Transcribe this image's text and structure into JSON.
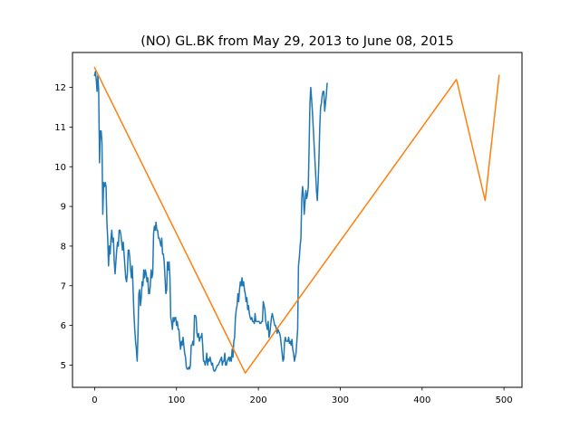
{
  "chart_data": {
    "type": "line",
    "title": "(NO) GL.BK from May 29, 2013 to June 08, 2015",
    "xlabel": "",
    "ylabel": "",
    "xlim": [
      -27,
      522
    ],
    "ylim": [
      4.44,
      12.88
    ],
    "x_ticks": [
      0,
      100,
      200,
      300,
      400,
      500
    ],
    "y_ticks": [
      5,
      6,
      7,
      8,
      9,
      10,
      11,
      12
    ],
    "grid": false,
    "legend": "none",
    "series": [
      {
        "color": "#1f77b4",
        "points": [
          [
            0,
            12.3
          ],
          [
            1,
            12.4
          ],
          [
            2,
            12.2
          ],
          [
            3,
            11.9
          ],
          [
            4,
            12.3
          ],
          [
            5,
            11.9
          ],
          [
            6,
            10.1
          ],
          [
            7,
            10.9
          ],
          [
            8,
            10.9
          ],
          [
            9,
            10.6
          ],
          [
            10,
            8.8
          ],
          [
            11,
            9.6
          ],
          [
            12,
            9.5
          ],
          [
            13,
            9.6
          ],
          [
            14,
            9.5
          ],
          [
            15,
            8.6
          ],
          [
            16,
            8.2
          ],
          [
            17,
            7.5
          ],
          [
            18,
            8.0
          ],
          [
            19,
            7.8
          ],
          [
            20,
            8.2
          ],
          [
            21,
            8.4
          ],
          [
            22,
            8.1
          ],
          [
            23,
            8.2
          ],
          [
            24,
            7.6
          ],
          [
            25,
            7.3
          ],
          [
            26,
            7.6
          ],
          [
            27,
            7.9
          ],
          [
            28,
            8.1
          ],
          [
            29,
            8.0
          ],
          [
            30,
            8.4
          ],
          [
            31,
            8.4
          ],
          [
            32,
            8.3
          ],
          [
            33,
            8.1
          ],
          [
            34,
            7.9
          ],
          [
            35,
            8.1
          ],
          [
            36,
            7.8
          ],
          [
            37,
            7.5
          ],
          [
            38,
            7.2
          ],
          [
            39,
            7.1
          ],
          [
            40,
            7.3
          ],
          [
            41,
            7.9
          ],
          [
            42,
            7.9
          ],
          [
            43,
            7.7
          ],
          [
            44,
            7.4
          ],
          [
            45,
            7.2
          ],
          [
            46,
            7.5
          ],
          [
            47,
            6.9
          ],
          [
            48,
            6.3
          ],
          [
            49,
            5.9
          ],
          [
            50,
            5.6
          ],
          [
            51,
            5.4
          ],
          [
            52,
            5.1
          ],
          [
            53,
            5.8
          ],
          [
            54,
            6.8
          ],
          [
            55,
            6.9
          ],
          [
            56,
            6.5
          ],
          [
            57,
            6.7
          ],
          [
            58,
            7.1
          ],
          [
            59,
            7.0
          ],
          [
            60,
            7.4
          ],
          [
            61,
            7.2
          ],
          [
            62,
            7.4
          ],
          [
            63,
            7.3
          ],
          [
            64,
            7.1
          ],
          [
            65,
            7.2
          ],
          [
            66,
            6.8
          ],
          [
            67,
            6.8
          ],
          [
            68,
            7.0
          ],
          [
            69,
            7.4
          ],
          [
            70,
            7.2
          ],
          [
            71,
            7.3
          ],
          [
            72,
            8.3
          ],
          [
            73,
            8.5
          ],
          [
            74,
            8.4
          ],
          [
            75,
            8.6
          ],
          [
            76,
            8.4
          ],
          [
            77,
            8.4
          ],
          [
            78,
            8.2
          ],
          [
            79,
            8.2
          ],
          [
            80,
            8.1
          ],
          [
            81,
            8.0
          ],
          [
            82,
            8.2
          ],
          [
            83,
            7.8
          ],
          [
            84,
            7.8
          ],
          [
            85,
            7.6
          ],
          [
            86,
            7.2
          ],
          [
            87,
            6.8
          ],
          [
            88,
            6.9
          ],
          [
            89,
            7.6
          ],
          [
            90,
            7.4
          ],
          [
            91,
            7.6
          ],
          [
            92,
            7.2
          ],
          [
            93,
            6.2
          ],
          [
            94,
            6.1
          ],
          [
            95,
            5.9
          ],
          [
            96,
            6.2
          ],
          [
            97,
            6.1
          ],
          [
            98,
            6.2
          ],
          [
            99,
            6.2
          ],
          [
            100,
            6.0
          ],
          [
            101,
            6.1
          ],
          [
            102,
            5.9
          ],
          [
            103,
            5.9
          ],
          [
            104,
            5.6
          ],
          [
            105,
            5.4
          ],
          [
            106,
            5.6
          ],
          [
            107,
            5.5
          ],
          [
            108,
            5.7
          ],
          [
            109,
            5.5
          ],
          [
            110,
            5.3
          ],
          [
            111,
            5.2
          ],
          [
            112,
            4.95
          ],
          [
            113,
            4.9
          ],
          [
            114,
            4.9
          ],
          [
            115,
            4.95
          ],
          [
            116,
            4.9
          ],
          [
            117,
            5.0
          ],
          [
            118,
            5.5
          ],
          [
            119,
            5.5
          ],
          [
            120,
            5.6
          ],
          [
            121,
            5.5
          ],
          [
            122,
            6.25
          ],
          [
            123,
            6.25
          ],
          [
            124,
            6.2
          ],
          [
            125,
            5.8
          ],
          [
            126,
            5.7
          ],
          [
            127,
            5.8
          ],
          [
            128,
            5.6
          ],
          [
            129,
            5.7
          ],
          [
            130,
            5.7
          ],
          [
            131,
            5.8
          ],
          [
            132,
            5.5
          ],
          [
            133,
            5.1
          ],
          [
            134,
            5.1
          ],
          [
            135,
            5.0
          ],
          [
            136,
            5.1
          ],
          [
            137,
            5.3
          ],
          [
            138,
            5.0
          ],
          [
            139,
            5.15
          ],
          [
            140,
            5.1
          ],
          [
            141,
            5.2
          ],
          [
            142,
            5.1
          ],
          [
            143,
            5.0
          ],
          [
            144,
            5.05
          ],
          [
            145,
            4.9
          ],
          [
            146,
            4.85
          ],
          [
            147,
            4.85
          ],
          [
            148,
            4.9
          ],
          [
            149,
            4.95
          ],
          [
            150,
            5.0
          ],
          [
            151,
            5.0
          ],
          [
            152,
            5.05
          ],
          [
            153,
            5.1
          ],
          [
            154,
            5.15
          ],
          [
            155,
            5.2
          ],
          [
            156,
            5.0
          ],
          [
            157,
            5.1
          ],
          [
            158,
            5.1
          ],
          [
            159,
            5.3
          ],
          [
            160,
            5.0
          ],
          [
            161,
            5.0
          ],
          [
            162,
            5.1
          ],
          [
            163,
            5.15
          ],
          [
            164,
            5.2
          ],
          [
            165,
            5.1
          ],
          [
            166,
            5.2
          ],
          [
            167,
            5.1
          ],
          [
            168,
            5.4
          ],
          [
            169,
            5.2
          ],
          [
            170,
            5.6
          ],
          [
            171,
            5.7
          ],
          [
            172,
            6.2
          ],
          [
            173,
            6.4
          ],
          [
            174,
            6.5
          ],
          [
            175,
            6.8
          ],
          [
            176,
            6.6
          ],
          [
            177,
            6.9
          ],
          [
            178,
            7.1
          ],
          [
            179,
            7.0
          ],
          [
            180,
            7.2
          ],
          [
            181,
            7.0
          ],
          [
            182,
            7.1
          ],
          [
            183,
            6.9
          ],
          [
            184,
            6.8
          ],
          [
            185,
            6.6
          ],
          [
            186,
            6.7
          ],
          [
            187,
            6.4
          ],
          [
            188,
            6.5
          ],
          [
            189,
            6.3
          ],
          [
            190,
            6.2
          ],
          [
            191,
            6.15
          ],
          [
            192,
            6.2
          ],
          [
            193,
            6.1
          ],
          [
            194,
            6.1
          ],
          [
            195,
            6.05
          ],
          [
            196,
            6.3
          ],
          [
            197,
            6.1
          ],
          [
            198,
            6.1
          ],
          [
            199,
            6.1
          ],
          [
            200,
            6.1
          ],
          [
            201,
            6.1
          ],
          [
            202,
            6.05
          ],
          [
            203,
            6.05
          ],
          [
            204,
            6.1
          ],
          [
            205,
            6.1
          ],
          [
            206,
            6.6
          ],
          [
            207,
            6.5
          ],
          [
            208,
            6.4
          ],
          [
            209,
            6.1
          ],
          [
            210,
            6.0
          ],
          [
            211,
            5.9
          ],
          [
            212,
            6.1
          ],
          [
            213,
            5.7
          ],
          [
            214,
            5.8
          ],
          [
            215,
            6.0
          ],
          [
            216,
            6.2
          ],
          [
            217,
            6.3
          ],
          [
            218,
            6.2
          ],
          [
            219,
            6.1
          ],
          [
            220,
            6.0
          ],
          [
            221,
            6.0
          ],
          [
            222,
            5.9
          ],
          [
            223,
            5.8
          ],
          [
            224,
            5.9
          ],
          [
            225,
            5.85
          ],
          [
            226,
            5.8
          ],
          [
            227,
            5.7
          ],
          [
            228,
            5.5
          ],
          [
            229,
            5.3
          ],
          [
            230,
            5.1
          ],
          [
            231,
            5.15
          ],
          [
            232,
            5.6
          ],
          [
            233,
            5.7
          ],
          [
            234,
            5.6
          ],
          [
            235,
            5.6
          ],
          [
            236,
            5.6
          ],
          [
            237,
            5.7
          ],
          [
            238,
            5.55
          ],
          [
            239,
            5.6
          ],
          [
            240,
            5.5
          ],
          [
            241,
            5.65
          ],
          [
            242,
            5.4
          ],
          [
            243,
            5.3
          ],
          [
            244,
            5.1
          ],
          [
            245,
            5.2
          ],
          [
            246,
            5.3
          ],
          [
            247,
            5.6
          ],
          [
            248,
            5.9
          ],
          [
            249,
            7.5
          ],
          [
            250,
            7.7
          ],
          [
            251,
            8.0
          ],
          [
            252,
            8.2
          ],
          [
            253,
            9.2
          ],
          [
            254,
            9.5
          ],
          [
            255,
            9.3
          ],
          [
            256,
            8.8
          ],
          [
            257,
            9.1
          ],
          [
            258,
            9.4
          ],
          [
            259,
            9.2
          ],
          [
            260,
            9.3
          ],
          [
            261,
            9.5
          ],
          [
            262,
            10.5
          ],
          [
            263,
            11.6
          ],
          [
            264,
            12.0
          ],
          [
            265,
            11.7
          ],
          [
            266,
            11.4
          ],
          [
            267,
            11.0
          ],
          [
            268,
            10.6
          ],
          [
            269,
            10.2
          ],
          [
            270,
            9.8
          ],
          [
            271,
            9.4
          ],
          [
            272,
            9.15
          ],
          [
            273,
            9.6
          ],
          [
            274,
            10.2
          ],
          [
            275,
            11.0
          ],
          [
            276,
            11.5
          ],
          [
            277,
            11.6
          ],
          [
            278,
            11.8
          ],
          [
            279,
            11.9
          ],
          [
            280,
            11.9
          ],
          [
            281,
            11.4
          ],
          [
            282,
            11.6
          ],
          [
            283,
            11.8
          ],
          [
            284,
            12.1
          ]
        ]
      },
      {
        "color": "#ff7f0e",
        "points": [
          [
            0,
            12.5
          ],
          [
            184,
            4.8
          ],
          [
            442,
            12.2
          ],
          [
            477,
            9.15
          ],
          [
            494,
            12.3
          ]
        ]
      }
    ]
  }
}
